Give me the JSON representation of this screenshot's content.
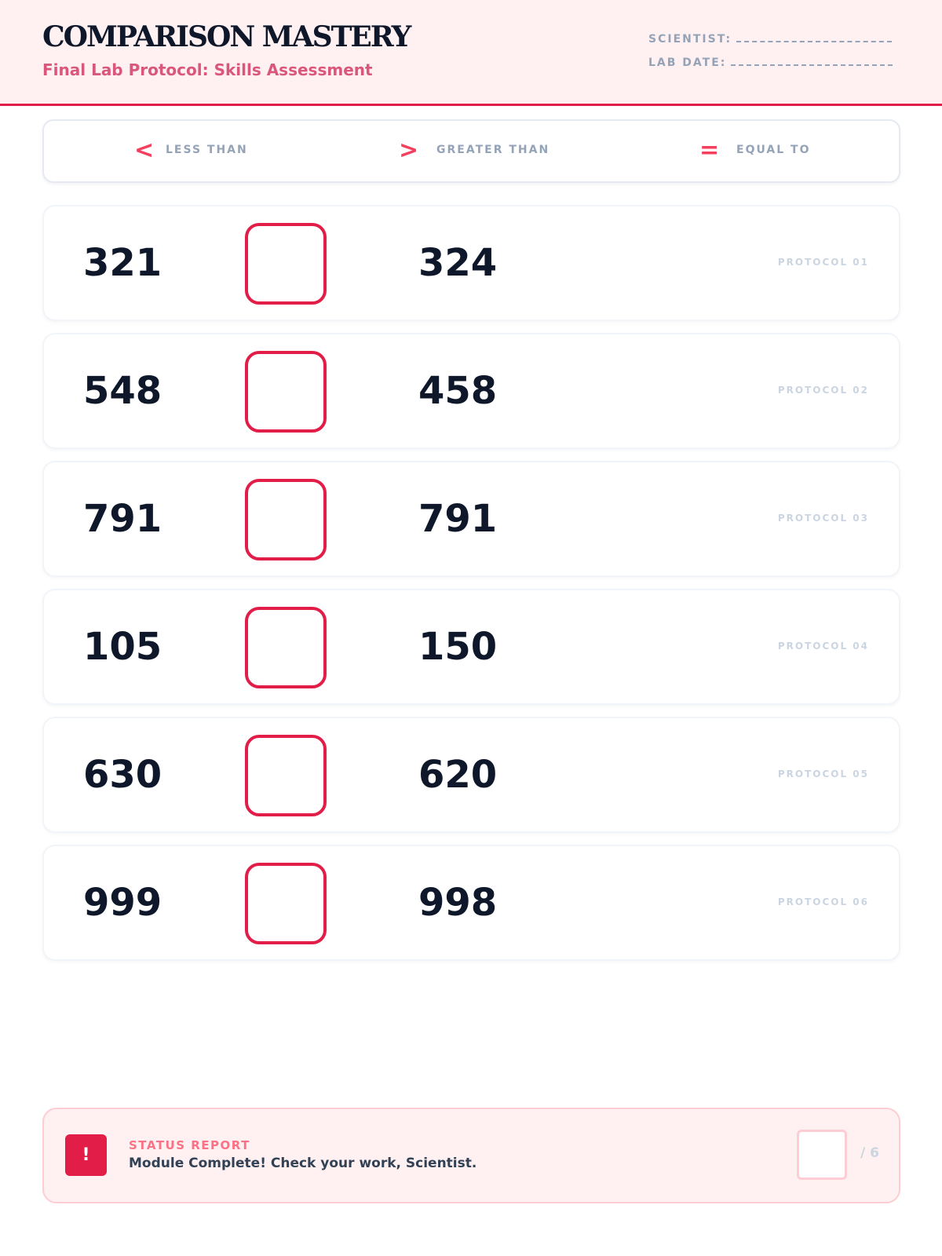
{
  "header": {
    "title": "COMPARISON MASTERY",
    "subtitle": "Final Lab Protocol: Skills Assessment",
    "scientist_label": "SCIENTIST:",
    "date_label": "LAB DATE:"
  },
  "legend": [
    {
      "symbol": "<",
      "label": "LESS THAN"
    },
    {
      "symbol": ">",
      "label": "GREATER THAN"
    },
    {
      "symbol": "=",
      "label": "EQUAL TO"
    }
  ],
  "rows": [
    {
      "left": "321",
      "right": "324",
      "label": "PROTOCOL 01",
      "answer": ""
    },
    {
      "left": "548",
      "right": "458",
      "label": "PROTOCOL 02",
      "answer": ""
    },
    {
      "left": "791",
      "right": "791",
      "label": "PROTOCOL 03",
      "answer": ""
    },
    {
      "left": "105",
      "right": "150",
      "label": "PROTOCOL 04",
      "answer": ""
    },
    {
      "left": "630",
      "right": "620",
      "label": "PROTOCOL 05",
      "answer": ""
    },
    {
      "left": "999",
      "right": "998",
      "label": "PROTOCOL 06",
      "answer": ""
    }
  ],
  "footer": {
    "icon": "!",
    "status": "STATUS REPORT",
    "message": "Module Complete! Check your work, Scientist.",
    "score": "",
    "total": "/ 6"
  },
  "colors": {
    "accent": "#e11d48",
    "header_bg": "#fff0f1",
    "text": "#0f172a",
    "muted": "#94a3b8"
  }
}
